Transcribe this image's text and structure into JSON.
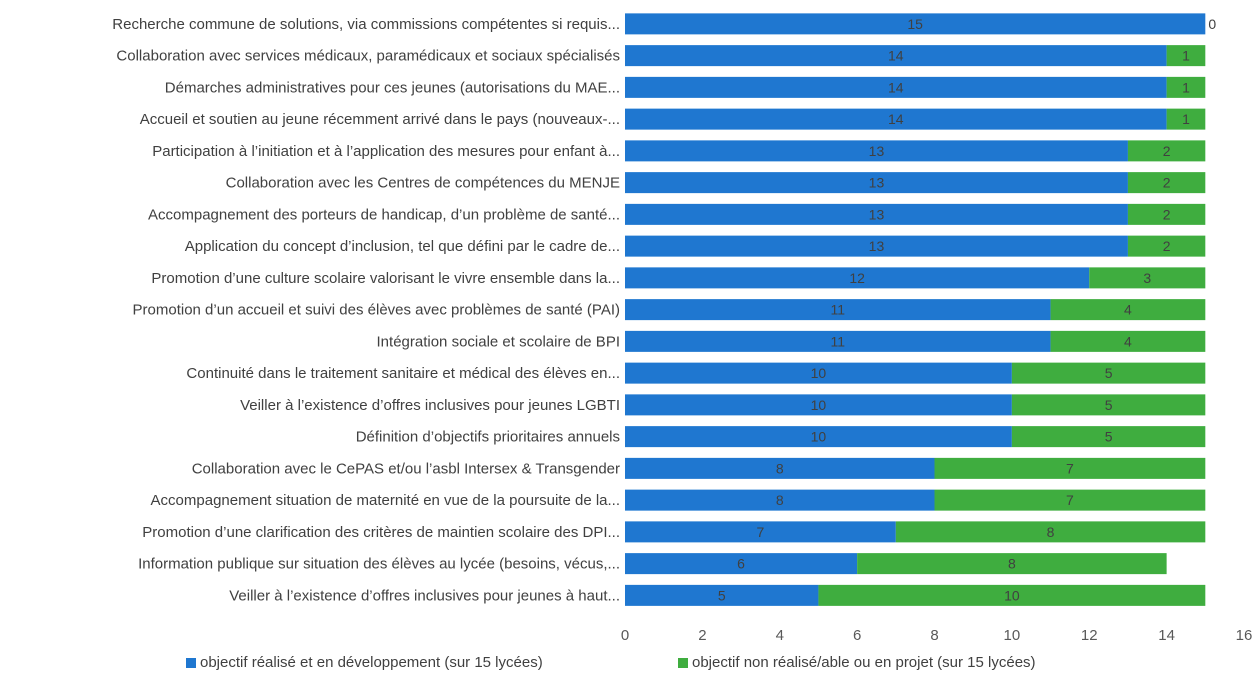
{
  "chart_data": {
    "type": "bar",
    "orientation": "horizontal",
    "stacked": true,
    "categories": [
      "Recherche commune de solutions, via commissions compétentes si requis...",
      "Collaboration avec services médicaux, paramédicaux et sociaux spécialisés",
      "Démarches administratives pour ces jeunes (autorisations du MAE...",
      "Accueil et soutien au jeune récemment arrivé dans le pays (nouveaux-...",
      "Participation à l’initiation et à l’application des mesures pour enfant à...",
      "Collaboration avec les Centres de compétences du MENJE",
      "Accompagnement des porteurs de handicap, d’un problème de santé...",
      "Application du concept d’inclusion, tel que défini par le cadre de...",
      "Promotion d’une culture scolaire valorisant le vivre ensemble dans la...",
      "Promotion d’un accueil et suivi des élèves avec problèmes de santé (PAI)",
      "Intégration sociale et scolaire de BPI",
      "Continuité dans le traitement sanitaire et médical des élèves en...",
      "Veiller à l’existence d’offres inclusives pour jeunes LGBTI",
      "Définition d’objectifs prioritaires annuels",
      "Collaboration avec le CePAS et/ou l’asbl Intersex & Transgender",
      "Accompagnement situation de maternité en vue de la poursuite de la...",
      "Promotion d’une clarification des critères de maintien scolaire des DPI...",
      "Information publique sur situation des élèves au lycée (besoins, vécus,...",
      "Veiller à l’existence d’offres inclusives pour jeunes à haut..."
    ],
    "series": [
      {
        "name": "objectif réalisé et en développement (sur 15 lycées)",
        "color": "#1f77d0",
        "values": [
          15,
          14,
          14,
          14,
          13,
          13,
          13,
          13,
          12,
          11,
          11,
          10,
          10,
          10,
          8,
          8,
          7,
          6,
          5
        ]
      },
      {
        "name": "objectif non réalisé/able ou en projet (sur 15 lycées)",
        "color": "#3fad3f",
        "values": [
          0,
          1,
          1,
          1,
          2,
          2,
          2,
          2,
          3,
          4,
          4,
          5,
          5,
          5,
          7,
          7,
          8,
          8,
          10
        ]
      }
    ],
    "xlim": [
      0,
      16
    ],
    "xticks": [
      0,
      2,
      4,
      6,
      8,
      10,
      12,
      14,
      16
    ],
    "grid": false,
    "legend_position": "bottom"
  }
}
